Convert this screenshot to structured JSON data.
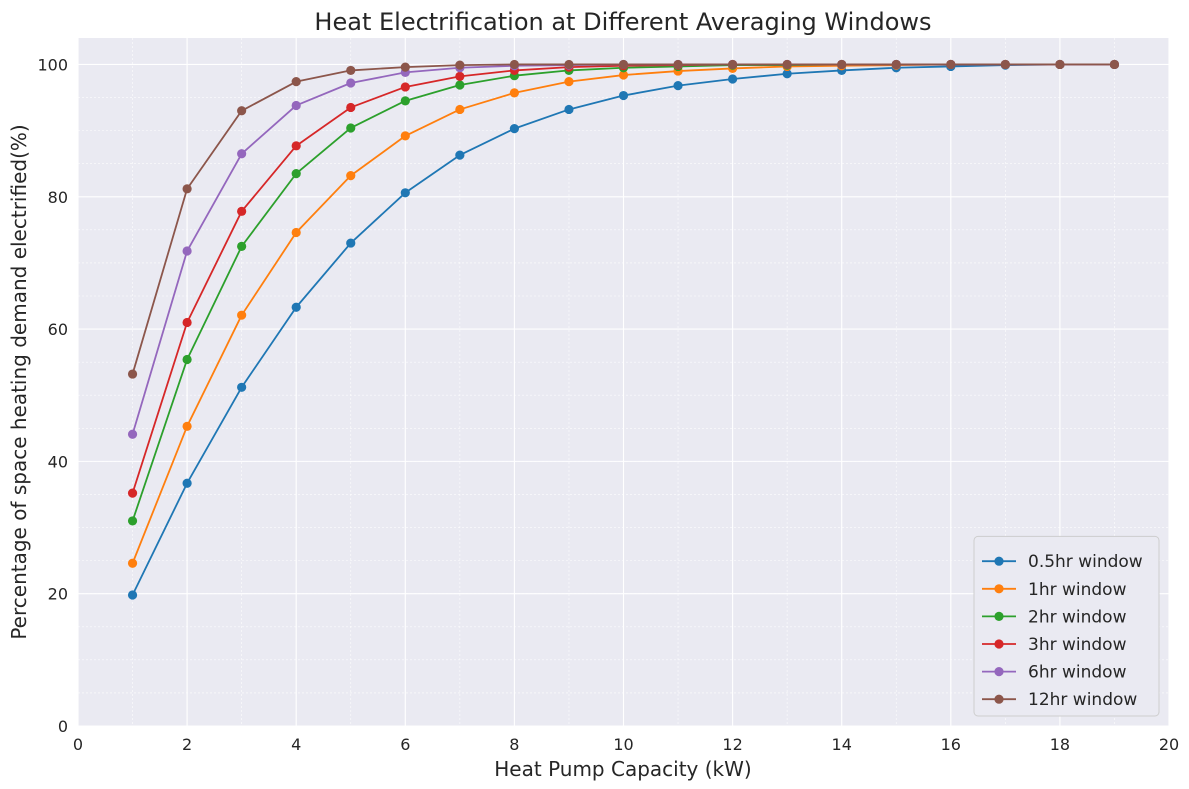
{
  "chart_data": {
    "type": "line",
    "title": "Heat Electrification at Different Averaging Windows",
    "xlabel": "Heat Pump Capacity (kW)",
    "ylabel": "Percentage of space heating demand electrified(%)",
    "xlim": [
      0,
      20
    ],
    "ylim": [
      0,
      104
    ],
    "xticks": [
      0,
      2,
      4,
      6,
      8,
      10,
      12,
      14,
      16,
      18,
      20
    ],
    "yticks": [
      0,
      20,
      40,
      60,
      80,
      100
    ],
    "grid": true,
    "legend_position": "bottom-right",
    "x": [
      1,
      2,
      3,
      4,
      5,
      6,
      7,
      8,
      9,
      10,
      11,
      12,
      13,
      14,
      15,
      16,
      17,
      18,
      19
    ],
    "series": [
      {
        "name": "0.5hr window",
        "color": "#1f77b4",
        "values": [
          19.8,
          36.7,
          51.2,
          63.3,
          73.0,
          80.6,
          86.3,
          90.3,
          93.2,
          95.3,
          96.8,
          97.8,
          98.6,
          99.1,
          99.5,
          99.7,
          99.9,
          100.0,
          100.0
        ]
      },
      {
        "name": "1hr window",
        "color": "#ff7f0e",
        "values": [
          24.6,
          45.3,
          62.1,
          74.6,
          83.2,
          89.2,
          93.2,
          95.7,
          97.4,
          98.4,
          99.0,
          99.4,
          99.7,
          99.8,
          99.9,
          100.0,
          100.0,
          100.0,
          100.0
        ]
      },
      {
        "name": "2hr window",
        "color": "#2ca02c",
        "values": [
          31.0,
          55.4,
          72.5,
          83.5,
          90.4,
          94.5,
          96.9,
          98.3,
          99.1,
          99.5,
          99.7,
          99.9,
          99.9,
          100.0,
          100.0,
          100.0,
          100.0,
          100.0,
          100.0
        ]
      },
      {
        "name": "3hr window",
        "color": "#d62728",
        "values": [
          35.2,
          61.0,
          77.8,
          87.7,
          93.5,
          96.6,
          98.2,
          99.1,
          99.6,
          99.8,
          99.9,
          100.0,
          100.0,
          100.0,
          100.0,
          100.0,
          100.0,
          100.0,
          100.0
        ]
      },
      {
        "name": "6hr window",
        "color": "#9467bd",
        "values": [
          44.1,
          71.8,
          86.5,
          93.8,
          97.2,
          98.8,
          99.5,
          99.8,
          99.9,
          100.0,
          100.0,
          100.0,
          100.0,
          100.0,
          100.0,
          100.0,
          100.0,
          100.0,
          100.0
        ]
      },
      {
        "name": "12hr window",
        "color": "#8c564b",
        "values": [
          53.2,
          81.2,
          93.0,
          97.4,
          99.1,
          99.6,
          99.9,
          100.0,
          100.0,
          100.0,
          100.0,
          100.0,
          100.0,
          100.0,
          100.0,
          100.0,
          100.0,
          100.0,
          100.0
        ]
      }
    ]
  }
}
